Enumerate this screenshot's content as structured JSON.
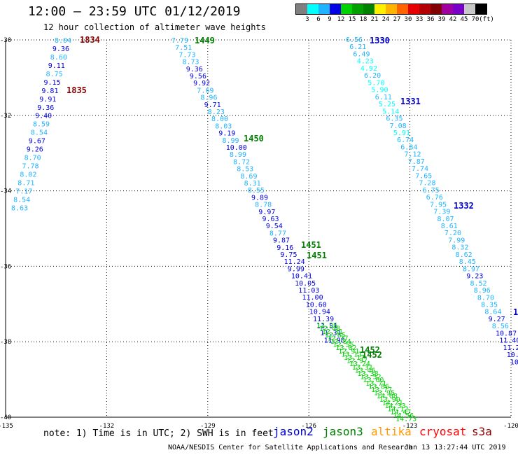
{
  "header": {
    "title": "12:00 – 23:59 UTC 01/12/2019",
    "subtitle": "12 hour collection of altimeter wave heights"
  },
  "scale": {
    "unit_label": "(ft)",
    "colors": [
      "#7f7f7f",
      "#00ffff",
      "#1eb4ff",
      "#0000e6",
      "#00d200",
      "#00a000",
      "#008200",
      "#fff000",
      "#ffb400",
      "#ff6400",
      "#e60000",
      "#b40000",
      "#820000",
      "#a000a0",
      "#7800c8",
      "#c8c8c8",
      "#000000"
    ],
    "labels": [
      "3",
      "6",
      "9",
      "12",
      "15",
      "18",
      "21",
      "24",
      "27",
      "30",
      "33",
      "36",
      "39",
      "42",
      "45",
      "70"
    ]
  },
  "map": {
    "x_ticks": [
      "-135",
      "-132",
      "-129",
      "-126",
      "-123",
      "-120"
    ],
    "y_ticks": [
      "-30",
      "-32",
      "-34",
      "-36",
      "-38",
      "-40"
    ],
    "lon_range": [
      -135,
      -120
    ],
    "lat_range": [
      -30,
      -40
    ],
    "track_labels": [
      {
        "text": "1834",
        "color": "#8b0000"
      },
      {
        "text": "1835",
        "color": "#8b0000"
      },
      {
        "text": "1449",
        "color": "#008000"
      },
      {
        "text": "1450",
        "color": "#008000"
      },
      {
        "text": "1451",
        "color": "#008000"
      },
      {
        "text": "1451",
        "color": "#008000"
      },
      {
        "text": "1452",
        "color": "#008000"
      },
      {
        "text": "1452",
        "color": "#008000"
      },
      {
        "text": "1330",
        "color": "#0000cc"
      },
      {
        "text": "1331",
        "color": "#0000cc"
      },
      {
        "text": "1332",
        "color": "#0000cc"
      },
      {
        "text": "1",
        "color": "#0000cc"
      }
    ],
    "tracks": [
      {
        "id": "track-1834",
        "points": [
          [
            "8.04",
            "#1eb4ff"
          ],
          [
            "9.36",
            "#0000e6"
          ],
          [
            "8.60",
            "#1eb4ff"
          ],
          [
            "9.11",
            "#0000e6"
          ],
          [
            "8.75",
            "#1eb4ff"
          ],
          [
            "9.15",
            "#0000e6"
          ],
          [
            "9.81",
            "#0000e6"
          ],
          [
            "9.91",
            "#0000e6"
          ],
          [
            "9.36",
            "#0000e6"
          ],
          [
            "9.40",
            "#0000e6"
          ],
          [
            "8.59",
            "#1eb4ff"
          ],
          [
            "8.54",
            "#1eb4ff"
          ],
          [
            "9.67",
            "#0000e6"
          ],
          [
            "9.26",
            "#0000e6"
          ],
          [
            "8.70",
            "#1eb4ff"
          ],
          [
            "7.78",
            "#1eb4ff"
          ],
          [
            "8.02",
            "#1eb4ff"
          ],
          [
            "8.71",
            "#1eb4ff"
          ],
          [
            "7.17",
            "#1eb4ff"
          ],
          [
            "8.54",
            "#1eb4ff"
          ],
          [
            "8.63",
            "#1eb4ff"
          ]
        ]
      },
      {
        "id": "track-1449",
        "points": [
          [
            "7.79",
            "#1eb4ff"
          ],
          [
            "7.51",
            "#1eb4ff"
          ],
          [
            "7.73",
            "#1eb4ff"
          ],
          [
            "8.73",
            "#1eb4ff"
          ],
          [
            "9.36",
            "#0000e6"
          ],
          [
            "9.56",
            "#0000e6"
          ],
          [
            "9.92",
            "#0000e6"
          ],
          [
            "7.69",
            "#1eb4ff"
          ],
          [
            "8.96",
            "#1eb4ff"
          ],
          [
            "9.71",
            "#0000e6"
          ],
          [
            "8.23",
            "#1eb4ff"
          ],
          [
            "8.00",
            "#1eb4ff"
          ],
          [
            "8.03",
            "#1eb4ff"
          ],
          [
            "9.19",
            "#0000e6"
          ],
          [
            "8.99",
            "#1eb4ff"
          ],
          [
            "10.00",
            "#0000e6"
          ],
          [
            "8.99",
            "#1eb4ff"
          ],
          [
            "8.72",
            "#1eb4ff"
          ],
          [
            "8.53",
            "#1eb4ff"
          ],
          [
            "8.69",
            "#1eb4ff"
          ],
          [
            "8.31",
            "#1eb4ff"
          ],
          [
            "8.55",
            "#1eb4ff"
          ],
          [
            "9.89",
            "#0000e6"
          ],
          [
            "8.78",
            "#1eb4ff"
          ],
          [
            "9.97",
            "#0000e6"
          ],
          [
            "9.63",
            "#0000e6"
          ],
          [
            "9.54",
            "#0000e6"
          ],
          [
            "8.77",
            "#1eb4ff"
          ],
          [
            "9.87",
            "#0000e6"
          ],
          [
            "9.16",
            "#0000e6"
          ],
          [
            "9.75",
            "#0000e6"
          ],
          [
            "11.24",
            "#0000e6"
          ],
          [
            "9.99",
            "#0000e6"
          ],
          [
            "10.41",
            "#0000e6"
          ],
          [
            "10.05",
            "#0000e6"
          ],
          [
            "11.03",
            "#0000e6"
          ],
          [
            "11.00",
            "#0000e6"
          ],
          [
            "10.60",
            "#0000e6"
          ],
          [
            "10.94",
            "#0000e6"
          ],
          [
            "11.39",
            "#0000e6"
          ],
          [
            "11.51",
            "#0000e6"
          ],
          [
            "11.31",
            "#0000e6"
          ],
          [
            "11.98",
            "#0000e6"
          ]
        ]
      },
      {
        "id": "track-1330",
        "points": [
          [
            "6.56",
            "#1eb4ff"
          ],
          [
            "6.21",
            "#1eb4ff"
          ],
          [
            "6.49",
            "#1eb4ff"
          ],
          [
            "4.23",
            "#00ffff"
          ],
          [
            "4.92",
            "#00ffff"
          ],
          [
            "6.20",
            "#1eb4ff"
          ],
          [
            "5.70",
            "#00ffff"
          ],
          [
            "5.90",
            "#00ffff"
          ],
          [
            "6.11",
            "#1eb4ff"
          ],
          [
            "5.25",
            "#00ffff"
          ],
          [
            "5.14",
            "#00ffff"
          ],
          [
            "6.35",
            "#1eb4ff"
          ],
          [
            "7.08",
            "#1eb4ff"
          ],
          [
            "5.91",
            "#00ffff"
          ],
          [
            "6.74",
            "#1eb4ff"
          ],
          [
            "6.84",
            "#1eb4ff"
          ],
          [
            "7.12",
            "#1eb4ff"
          ],
          [
            "7.87",
            "#1eb4ff"
          ],
          [
            "7.74",
            "#1eb4ff"
          ],
          [
            "7.65",
            "#1eb4ff"
          ],
          [
            "7.28",
            "#1eb4ff"
          ],
          [
            "6.75",
            "#1eb4ff"
          ],
          [
            "6.76",
            "#1eb4ff"
          ],
          [
            "7.95",
            "#1eb4ff"
          ],
          [
            "7.39",
            "#1eb4ff"
          ],
          [
            "8.07",
            "#1eb4ff"
          ],
          [
            "8.61",
            "#1eb4ff"
          ],
          [
            "7.20",
            "#1eb4ff"
          ],
          [
            "7.99",
            "#1eb4ff"
          ],
          [
            "8.32",
            "#1eb4ff"
          ],
          [
            "8.62",
            "#1eb4ff"
          ],
          [
            "8.45",
            "#1eb4ff"
          ],
          [
            "8.97",
            "#1eb4ff"
          ],
          [
            "9.23",
            "#0000e6"
          ],
          [
            "8.52",
            "#1eb4ff"
          ],
          [
            "8.96",
            "#1eb4ff"
          ],
          [
            "8.70",
            "#1eb4ff"
          ],
          [
            "8.35",
            "#1eb4ff"
          ],
          [
            "8.64",
            "#1eb4ff"
          ],
          [
            "9.27",
            "#0000e6"
          ],
          [
            "8.56",
            "#1eb4ff"
          ],
          [
            "10.87",
            "#0000e6"
          ],
          [
            "11.40",
            "#0000e6"
          ],
          [
            "11.2",
            "#0000e6"
          ],
          [
            "10.",
            "#0000e6"
          ],
          [
            "10",
            "#0000e6"
          ]
        ]
      },
      {
        "id": "track-1452",
        "points": [
          [
            "12.26",
            "#00d200"
          ],
          [
            "12.48",
            "#00d200"
          ],
          [
            "12.31",
            "#00d200"
          ],
          [
            "12.65",
            "#00d200"
          ],
          [
            "12.77",
            "#00d200"
          ],
          [
            "12.84",
            "#00d200"
          ],
          [
            "12.55",
            "#00d200"
          ],
          [
            "13.02",
            "#00d200"
          ],
          [
            "12.91",
            "#00d200"
          ],
          [
            "13.11",
            "#00d200"
          ],
          [
            "13.17",
            "#00d200"
          ],
          [
            "12.97",
            "#00d200"
          ],
          [
            "13.24",
            "#00d200"
          ],
          [
            "13.31",
            "#00d200"
          ],
          [
            "13.46",
            "#00d200"
          ],
          [
            "13.38",
            "#00d200"
          ],
          [
            "13.52",
            "#00d200"
          ],
          [
            "13.60",
            "#00d200"
          ],
          [
            "13.71",
            "#00d200"
          ],
          [
            "13.86",
            "#00d200"
          ],
          [
            "13.77",
            "#00d200"
          ],
          [
            "13.95",
            "#00d200"
          ],
          [
            "14.08",
            "#00d200"
          ],
          [
            "13.90",
            "#00d200"
          ],
          [
            "14.21",
            "#00d200"
          ],
          [
            "14.33",
            "#00d200"
          ],
          [
            "14.12",
            "#00d200"
          ],
          [
            "14.47",
            "#00d200"
          ],
          [
            "14.56",
            "#00d200"
          ],
          [
            "14.73",
            "#00d200"
          ]
        ]
      }
    ]
  },
  "footer": {
    "note": "note: 1) Time is in UTC; 2) SWH is in feet",
    "legend": [
      {
        "text": "jason2",
        "color": "#0000cc"
      },
      {
        "text": "jason3",
        "color": "#008000"
      },
      {
        "text": "altika",
        "color": "#ff9900"
      },
      {
        "text": "cryosat",
        "color": "#ff0000"
      },
      {
        "text": "s3a",
        "color": "#8b0000"
      }
    ],
    "credit": "NOAA/NESDIS Center for Satellite Applications and Research",
    "timestamp": "Jan 13 13:27:44 UTC 2019"
  }
}
